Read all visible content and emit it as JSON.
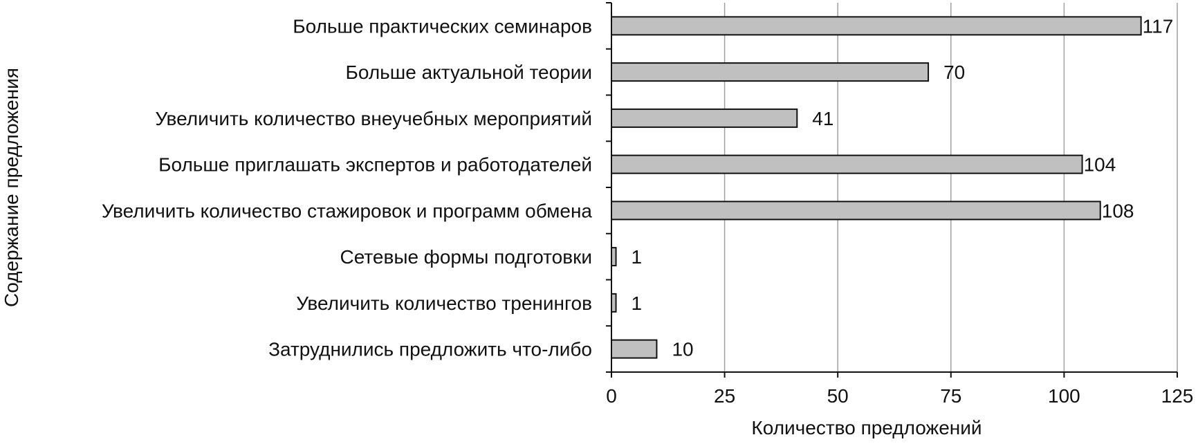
{
  "chart_data": {
    "type": "bar",
    "orientation": "horizontal",
    "categories": [
      "Больше практических семинаров",
      "Больше актуальной теории",
      "Увеличить количество внеучебных мероприятий",
      "Больше приглашать экспертов и работодателей",
      "Увеличить количество стажировок и программ обмена",
      "Сетевые формы подготовки",
      "Увеличить количество тренингов",
      "Затруднились предложить что-либо"
    ],
    "values": [
      117,
      70,
      41,
      104,
      108,
      1,
      1,
      10
    ],
    "data_labels": [
      "117",
      "70",
      "41",
      "104",
      "108",
      "1",
      "1",
      "10"
    ],
    "xlabel": "Количество предложений",
    "ylabel": "Содержание предложения",
    "xlim": [
      0,
      125
    ],
    "xticks": [
      "0",
      "25",
      "50",
      "75",
      "100",
      "125"
    ],
    "grid": "vertical",
    "colors": {
      "bar_fill": "#c0c0c0",
      "bar_stroke": "#111111",
      "grid": "#a0a0a0",
      "axis": "#111111"
    }
  }
}
